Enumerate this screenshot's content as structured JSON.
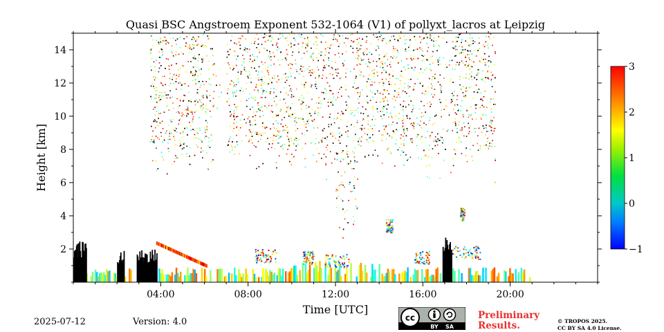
{
  "chart_data": {
    "type": "heatmap",
    "title": "Quasi BSC Angstroem Exponent 532-1064 (V1) of pollyxt_lacros at Leipzig",
    "xlabel": "Time [UTC]",
    "ylabel": "Height [km]",
    "xlim": [
      0,
      24
    ],
    "ylim": [
      0,
      15
    ],
    "x_tick_labels": [
      "04:00",
      "08:00",
      "12:00",
      "16:00",
      "20:00"
    ],
    "x_tick_values": [
      4,
      8,
      12,
      16,
      20
    ],
    "y_tick_labels": [
      "2",
      "4",
      "6",
      "8",
      "10",
      "12",
      "14"
    ],
    "y_tick_values": [
      2,
      4,
      6,
      8,
      10,
      12,
      14
    ],
    "colorbar": {
      "range": [
        -1,
        3
      ],
      "tick_labels": [
        "−1",
        "0",
        "1",
        "2",
        "3"
      ],
      "tick_values": [
        -1,
        0,
        1,
        2,
        3
      ],
      "colormap": "jet"
    },
    "cloud_regions": [
      {
        "t_start": 0.0,
        "t_end": 0.6,
        "h_top": 2.5
      },
      {
        "t_start": 2.0,
        "t_end": 2.3,
        "h_top": 1.9
      },
      {
        "t_start": 2.9,
        "t_end": 3.8,
        "h_top": 2.0
      },
      {
        "t_start": 16.9,
        "t_end": 17.3,
        "h_top": 2.8
      }
    ],
    "aerosol_layer": {
      "t_start": 0.0,
      "t_end": 20.9,
      "h_top": 2.0
    },
    "scattered_signal": {
      "t_start": 3.5,
      "t_end": 19.3,
      "h_bottom": 5.5,
      "h_top": 15.0
    }
  },
  "footer": {
    "date": "2025-07-12",
    "version": "Version: 4.0",
    "preliminary_line1": "Preliminary",
    "preliminary_line2": "Results.",
    "copyright_line1": "© TROPOS 2025.",
    "copyright_line2": "CC BY SA 4.0 License."
  },
  "license_badge": {
    "text_cc": "cc",
    "text_by": "BY",
    "text_sa": "SA"
  }
}
